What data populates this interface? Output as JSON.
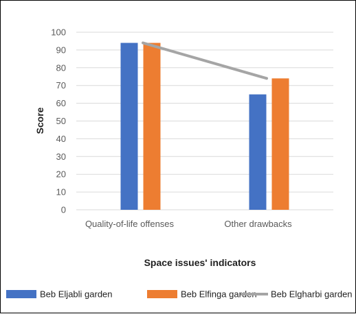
{
  "chart_data": {
    "type": "bar",
    "categories": [
      "Quality-of-life offenses",
      "Other drawbacks"
    ],
    "series": [
      {
        "name": "Beb Eljabli garden",
        "type": "bar",
        "color": "#4472C4",
        "values": [
          94,
          65
        ]
      },
      {
        "name": "Beb Elfinga garden",
        "type": "bar",
        "color": "#ED7D31",
        "values": [
          94,
          74
        ]
      },
      {
        "name": "Beb Elgharbi garden",
        "type": "line",
        "color": "#A5A5A5",
        "values": [
          94,
          74
        ]
      }
    ],
    "yticks": [
      "0",
      "10",
      "20",
      "30",
      "40",
      "50",
      "60",
      "70",
      "80",
      "90",
      "100"
    ],
    "ylim": [
      0,
      100
    ],
    "xlabel": "Space issues' indicators",
    "ylabel": "Score",
    "grid": true,
    "legend_position": "bottom"
  }
}
